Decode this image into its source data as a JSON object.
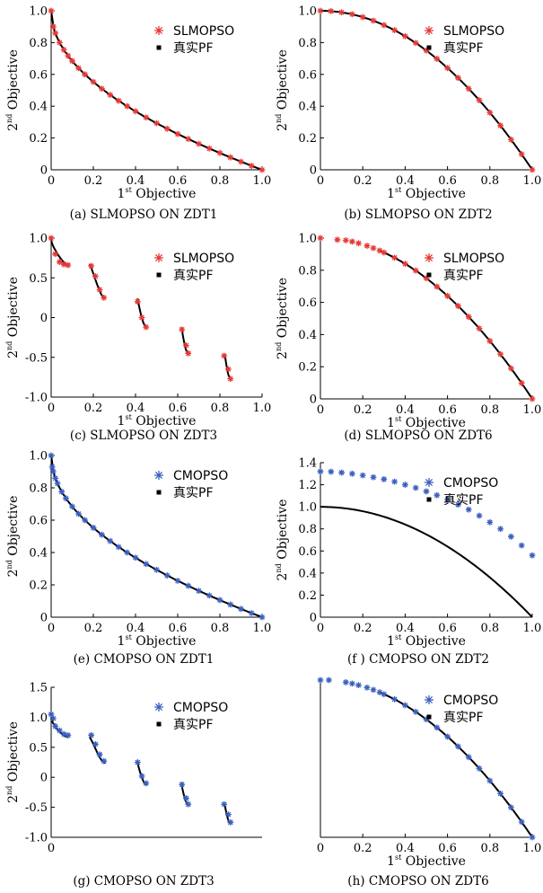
{
  "figure": {
    "colors": {
      "slmopso": "#e53935",
      "cmopso": "#3a5fbf",
      "true_pf": "#000000"
    }
  },
  "chart_data": [
    {
      "type": "scatter",
      "caption": "(a) SLMOPSO ON ZDT1",
      "problem": "ZDT1",
      "xlabel": "1st Objective",
      "ylabel": "2nd Objective",
      "xlim": [
        0,
        1
      ],
      "ylim": [
        0,
        1
      ],
      "xticks": [
        "0",
        "0.2",
        "0.4",
        "0.6",
        "0.8",
        "1.0"
      ],
      "yticks": [
        "0",
        "0.2",
        "0.4",
        "0.6",
        "0.8",
        "1.0"
      ],
      "legend_position": "top-right",
      "series": [
        {
          "name": "SLMOPSO",
          "marker": "red-asterisk",
          "x": [
            0.0,
            0.01,
            0.02,
            0.04,
            0.06,
            0.08,
            0.1,
            0.13,
            0.16,
            0.2,
            0.24,
            0.28,
            0.32,
            0.36,
            0.4,
            0.45,
            0.5,
            0.55,
            0.6,
            0.65,
            0.7,
            0.75,
            0.8,
            0.85,
            0.9,
            0.95,
            1.0
          ],
          "y": [
            1.0,
            0.9,
            0.859,
            0.8,
            0.755,
            0.717,
            0.684,
            0.639,
            0.6,
            0.553,
            0.51,
            0.471,
            0.434,
            0.4,
            0.368,
            0.329,
            0.293,
            0.258,
            0.225,
            0.194,
            0.163,
            0.134,
            0.106,
            0.078,
            0.051,
            0.025,
            0.0
          ]
        },
        {
          "name": "真实PF",
          "marker": "black-square",
          "curve": "f2 = 1 - sqrt(f1)"
        }
      ]
    },
    {
      "type": "scatter",
      "caption": "(b) SLMOPSO ON ZDT2",
      "problem": "ZDT2",
      "xlabel": "1st Objective",
      "ylabel": "2nd Objective",
      "xlim": [
        0,
        1
      ],
      "ylim": [
        0,
        1
      ],
      "xticks": [
        "0",
        "0.2",
        "0.4",
        "0.6",
        "0.8",
        "1.0"
      ],
      "yticks": [
        "0",
        "0.2",
        "0.4",
        "0.6",
        "0.8",
        "1.0"
      ],
      "legend_position": "top-right",
      "series": [
        {
          "name": "SLMOPSO",
          "marker": "red-asterisk",
          "x": [
            0.0,
            0.05,
            0.1,
            0.15,
            0.2,
            0.25,
            0.3,
            0.35,
            0.4,
            0.45,
            0.5,
            0.55,
            0.6,
            0.65,
            0.7,
            0.75,
            0.8,
            0.85,
            0.9,
            0.95,
            1.0
          ],
          "y": [
            1.0,
            0.998,
            0.99,
            0.978,
            0.96,
            0.938,
            0.91,
            0.878,
            0.84,
            0.798,
            0.75,
            0.698,
            0.64,
            0.578,
            0.51,
            0.438,
            0.36,
            0.278,
            0.19,
            0.098,
            0.0
          ]
        },
        {
          "name": "真实PF",
          "marker": "black-square",
          "curve": "f2 = 1 - f1^2"
        }
      ]
    },
    {
      "type": "scatter",
      "caption": "(c) SLMOPSO ON ZDT3",
      "problem": "ZDT3",
      "xlabel": "1st Objective",
      "ylabel": "2nd Objective",
      "xlim": [
        0,
        1
      ],
      "ylim": [
        -1,
        1
      ],
      "xticks": [
        "0",
        "0.2",
        "0.4",
        "0.6",
        "0.8",
        "1.0"
      ],
      "yticks": [
        "-1.0",
        "-0.5",
        "0",
        "0.5",
        "1.0"
      ],
      "legend_position": "top-right",
      "series": [
        {
          "name": "SLMOPSO",
          "marker": "red-asterisk",
          "x": [
            0.0,
            0.02,
            0.04,
            0.06,
            0.08,
            0.19,
            0.21,
            0.23,
            0.25,
            0.41,
            0.43,
            0.45,
            0.62,
            0.64,
            0.65,
            0.82,
            0.84,
            0.85
          ],
          "y": [
            1.0,
            0.8,
            0.7,
            0.67,
            0.66,
            0.65,
            0.52,
            0.35,
            0.25,
            0.2,
            0.0,
            -0.12,
            -0.15,
            -0.35,
            -0.45,
            -0.48,
            -0.65,
            -0.77
          ]
        },
        {
          "name": "真实PF",
          "marker": "black-square",
          "curve": "f2 = 1 - sqrt(f1) - f1*sin(10*pi*f1)"
        }
      ]
    },
    {
      "type": "scatter",
      "caption": "(d) SLMOPSO ON ZDT6",
      "problem": "ZDT6",
      "xlabel": "1st Objective",
      "ylabel": "2nd Objective",
      "xlim": [
        0,
        1
      ],
      "ylim": [
        0,
        1
      ],
      "xticks": [
        "0",
        "0.2",
        "0.4",
        "0.6",
        "0.8",
        "1.0"
      ],
      "yticks": [
        "0",
        "0.2",
        "0.4",
        "0.6",
        "0.8",
        "1.0"
      ],
      "legend_position": "top-right",
      "series": [
        {
          "name": "SLMOPSO",
          "marker": "red-asterisk",
          "x": [
            0.0,
            0.08,
            0.12,
            0.15,
            0.18,
            0.22,
            0.25,
            0.28,
            0.3,
            0.35,
            0.4,
            0.45,
            0.5,
            0.55,
            0.6,
            0.65,
            0.7,
            0.75,
            0.8,
            0.85,
            0.9,
            0.95,
            1.0
          ],
          "y": [
            1.0,
            0.99,
            0.986,
            0.978,
            0.968,
            0.952,
            0.938,
            0.922,
            0.91,
            0.878,
            0.84,
            0.798,
            0.75,
            0.698,
            0.64,
            0.578,
            0.51,
            0.438,
            0.36,
            0.278,
            0.19,
            0.098,
            0.0
          ]
        },
        {
          "name": "真实PF",
          "marker": "black-square",
          "curve": "f2 = 1 - f1^2, f1 >= 0.28"
        }
      ]
    },
    {
      "type": "scatter",
      "caption": "(e) CMOPSO ON ZDT1",
      "problem": "ZDT1",
      "xlabel": "1st Objective",
      "ylabel": "2nd Objective",
      "xlim": [
        0,
        1
      ],
      "ylim": [
        0,
        1
      ],
      "xticks": [
        "0",
        "0.2",
        "0.4",
        "0.6",
        "0.8",
        "1.0"
      ],
      "yticks": [
        "0",
        "0.2",
        "0.4",
        "0.6",
        "0.8",
        "1.0"
      ],
      "legend_position": "top-right",
      "series": [
        {
          "name": "CMOPSO",
          "marker": "blue-asterisk",
          "x": [
            0.0,
            0.005,
            0.01,
            0.02,
            0.03,
            0.05,
            0.07,
            0.1,
            0.13,
            0.16,
            0.2,
            0.24,
            0.28,
            0.32,
            0.36,
            0.4,
            0.45,
            0.5,
            0.55,
            0.6,
            0.65,
            0.7,
            0.75,
            0.8,
            0.85,
            0.9,
            0.95,
            1.0
          ],
          "y": [
            1.0,
            0.929,
            0.9,
            0.859,
            0.827,
            0.776,
            0.735,
            0.684,
            0.639,
            0.6,
            0.553,
            0.51,
            0.471,
            0.434,
            0.4,
            0.368,
            0.329,
            0.293,
            0.258,
            0.225,
            0.194,
            0.163,
            0.134,
            0.106,
            0.078,
            0.051,
            0.025,
            0.0
          ]
        },
        {
          "name": "真实PF",
          "marker": "black-square",
          "curve": "f2 = 1 - sqrt(f1)"
        }
      ]
    },
    {
      "type": "scatter",
      "caption": "(f ) CMOPSO ON ZDT2",
      "problem": "ZDT2",
      "xlabel": "1st Objective",
      "ylabel": "2nd Objective",
      "xlim": [
        0,
        1
      ],
      "ylim": [
        0,
        1.4
      ],
      "xticks": [
        "0",
        "0.2",
        "0.4",
        "0.6",
        "0.8",
        "1.0"
      ],
      "yticks": [
        "0",
        "0.2",
        "0.4",
        "0.6",
        "0.8",
        "1.0",
        "1.2",
        "1.4"
      ],
      "legend_position": "top-right",
      "series": [
        {
          "name": "CMOPSO",
          "marker": "blue-asterisk",
          "x": [
            0.0,
            0.05,
            0.1,
            0.15,
            0.2,
            0.25,
            0.3,
            0.35,
            0.4,
            0.45,
            0.5,
            0.55,
            0.6,
            0.65,
            0.7,
            0.75,
            0.8,
            0.85,
            0.9,
            0.95,
            1.0
          ],
          "y": [
            1.32,
            1.318,
            1.31,
            1.3,
            1.285,
            1.268,
            1.25,
            1.228,
            1.2,
            1.172,
            1.14,
            1.105,
            1.065,
            1.02,
            0.975,
            0.92,
            0.86,
            0.8,
            0.73,
            0.65,
            0.56
          ]
        },
        {
          "name": "真实PF",
          "marker": "black-square",
          "curve": "f2 = 1 - f1^2"
        }
      ]
    },
    {
      "type": "scatter",
      "caption": "(g) CMOPSO ON ZDT3",
      "problem": "ZDT3",
      "xlabel": "",
      "ylabel": "2nd Objective",
      "xlim": [
        0,
        1
      ],
      "ylim": [
        -1,
        1.5
      ],
      "xticks": [
        "0"
      ],
      "yticks": [
        "-1.0",
        "-0.5",
        "0",
        "0.5",
        "1.0",
        "1.5"
      ],
      "legend_position": "top-right",
      "series": [
        {
          "name": "CMOPSO",
          "marker": "blue-asterisk",
          "x": [
            0.0,
            0.01,
            0.02,
            0.04,
            0.06,
            0.08,
            0.19,
            0.21,
            0.23,
            0.25,
            0.41,
            0.43,
            0.45,
            0.62,
            0.64,
            0.65,
            0.82,
            0.84,
            0.85
          ],
          "y": [
            1.05,
            0.98,
            0.85,
            0.78,
            0.72,
            0.7,
            0.7,
            0.55,
            0.38,
            0.27,
            0.25,
            0.02,
            -0.1,
            -0.12,
            -0.35,
            -0.45,
            -0.45,
            -0.62,
            -0.75
          ]
        },
        {
          "name": "真实PF",
          "marker": "black-square",
          "curve": "f2 = 1 - sqrt(f1) - f1*sin(10*pi*f1)"
        }
      ]
    },
    {
      "type": "scatter",
      "caption": "(h) CMOPSO ON ZDT6",
      "problem": "ZDT6",
      "xlabel": "1st Objective",
      "ylabel": "",
      "xlim": [
        0,
        1
      ],
      "ylim": [
        0,
        1
      ],
      "xticks": [
        "0",
        "0.2",
        "0.4",
        "0.6",
        "0.8",
        "1.0"
      ],
      "yticks": [],
      "legend_position": "top-right",
      "series": [
        {
          "name": "CMOPSO",
          "marker": "blue-asterisk",
          "x": [
            0.0,
            0.04,
            0.12,
            0.15,
            0.18,
            0.22,
            0.25,
            0.28,
            0.3,
            0.35,
            0.4,
            0.45,
            0.5,
            0.55,
            0.6,
            0.65,
            0.7,
            0.75,
            0.8,
            0.85,
            0.9,
            0.95,
            1.0
          ],
          "y": [
            1.0,
            1.0,
            0.986,
            0.978,
            0.968,
            0.952,
            0.938,
            0.922,
            0.91,
            0.878,
            0.84,
            0.798,
            0.75,
            0.698,
            0.64,
            0.578,
            0.51,
            0.438,
            0.36,
            0.278,
            0.19,
            0.098,
            0.0
          ]
        },
        {
          "name": "真实PF",
          "marker": "black-square",
          "curve": "f2 = 1 - f1^2, f1 >= 0.28"
        }
      ]
    }
  ]
}
